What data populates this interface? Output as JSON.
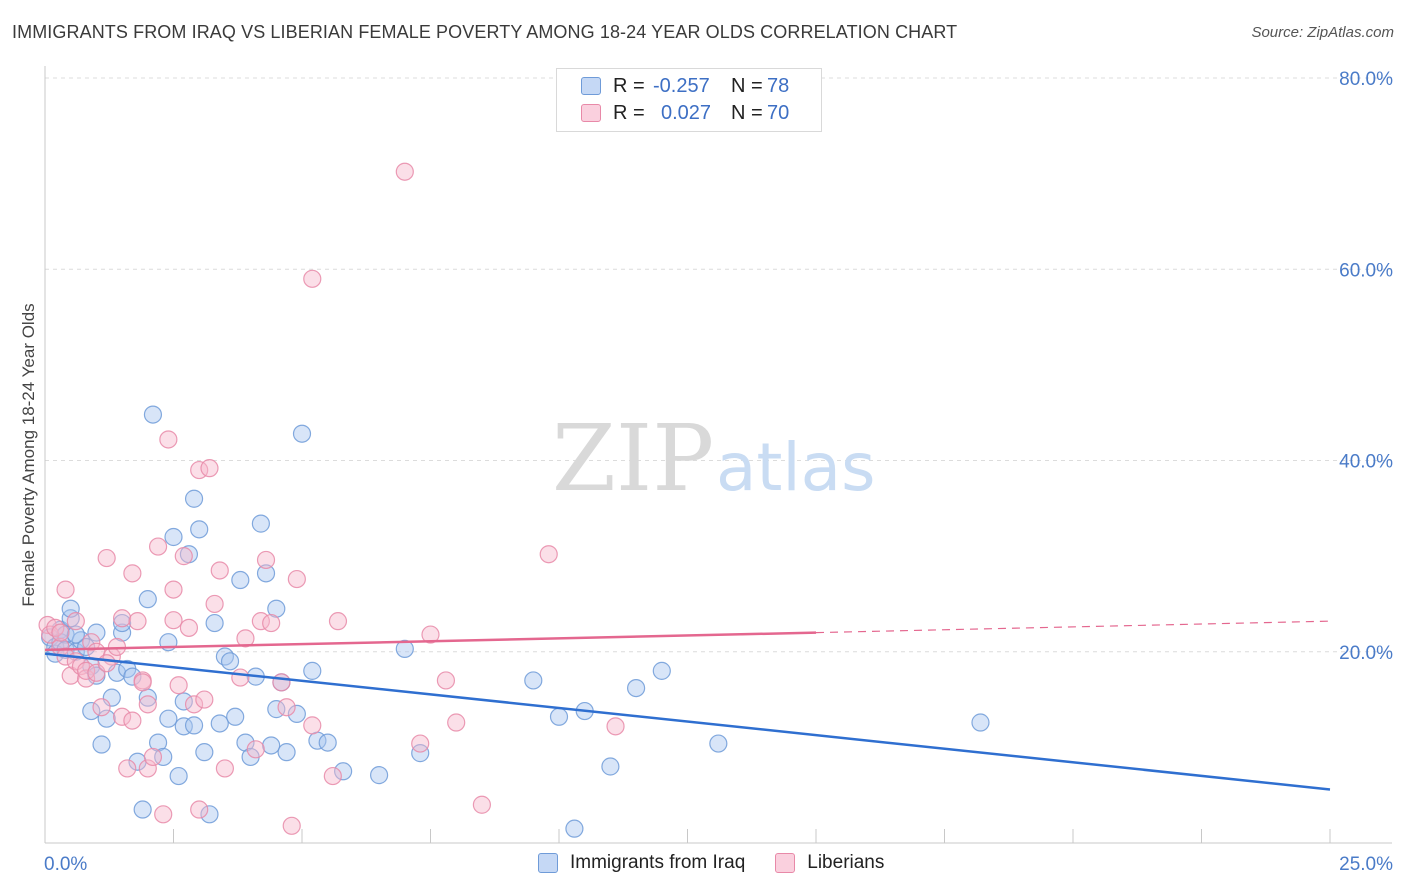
{
  "title": "IMMIGRANTS FROM IRAQ VS LIBERIAN FEMALE POVERTY AMONG 18-24 YEAR OLDS CORRELATION CHART",
  "source": "Source: ZipAtlas.com",
  "watermark": {
    "zip": "ZIP",
    "atlas": "atlas"
  },
  "legend": {
    "rows": [
      {
        "r_label": "R =",
        "r_value": "-0.257",
        "n_label": "N =",
        "n_value": "78",
        "color": "#a9c6ef",
        "border": "#6f9bd8"
      },
      {
        "r_label": "R =",
        "r_value": "0.027",
        "n_label": "N =",
        "n_value": "70",
        "color": "#f6b9cd",
        "border": "#e889a8"
      }
    ]
  },
  "bottom_legend": [
    {
      "label": "Immigrants from Iraq",
      "color": "#c5d8f5",
      "border": "#6f9bd8"
    },
    {
      "label": "Liberians",
      "color": "#fad0de",
      "border": "#e889a8"
    }
  ],
  "chart_data": {
    "type": "scatter",
    "ylabel": "Female Poverty Among 18-24 Year Olds",
    "xlabel": "",
    "xlim": [
      0,
      25
    ],
    "ylim": [
      0,
      80
    ],
    "x_tick_labels": [
      {
        "value": 0,
        "label": "0.0%"
      },
      {
        "value": 25,
        "label": "25.0%"
      }
    ],
    "y_tick_labels": [
      {
        "value": 20,
        "label": "20.0%"
      },
      {
        "value": 40,
        "label": "40.0%"
      },
      {
        "value": 60,
        "label": "60.0%"
      },
      {
        "value": 80,
        "label": "80.0%"
      }
    ],
    "grid": true,
    "series": [
      {
        "name": "Immigrants from Iraq",
        "color": "#6f9bd8",
        "fill": "#a9c6ef",
        "line_color": "#2f6fd0",
        "trend": {
          "x": [
            0,
            25
          ],
          "y": [
            19.8,
            5.6
          ]
        },
        "points": [
          [
            0.1,
            21.5
          ],
          [
            0.2,
            20.5
          ],
          [
            0.2,
            19.8
          ],
          [
            0.3,
            22.3
          ],
          [
            0.3,
            21.0
          ],
          [
            0.4,
            21.8
          ],
          [
            0.4,
            20.2
          ],
          [
            0.5,
            23.5
          ],
          [
            0.5,
            24.5
          ],
          [
            0.6,
            20.0
          ],
          [
            0.7,
            21.2
          ],
          [
            0.8,
            20.5
          ],
          [
            0.9,
            18.5
          ],
          [
            0.9,
            13.8
          ],
          [
            1.0,
            17.5
          ],
          [
            1.0,
            22.0
          ],
          [
            1.1,
            10.3
          ],
          [
            1.2,
            13.0
          ],
          [
            1.3,
            15.2
          ],
          [
            1.4,
            17.8
          ],
          [
            1.5,
            22.0
          ],
          [
            1.5,
            23.0
          ],
          [
            1.6,
            18.2
          ],
          [
            1.7,
            17.4
          ],
          [
            1.8,
            8.5
          ],
          [
            1.9,
            3.5
          ],
          [
            2.0,
            15.2
          ],
          [
            2.0,
            25.5
          ],
          [
            2.1,
            44.8
          ],
          [
            2.2,
            10.5
          ],
          [
            2.3,
            9.0
          ],
          [
            2.4,
            13.0
          ],
          [
            2.4,
            21.0
          ],
          [
            2.5,
            32.0
          ],
          [
            2.6,
            7.0
          ],
          [
            2.7,
            14.8
          ],
          [
            2.7,
            12.2
          ],
          [
            2.8,
            30.2
          ],
          [
            2.9,
            12.3
          ],
          [
            2.9,
            36.0
          ],
          [
            3.0,
            32.8
          ],
          [
            3.1,
            9.5
          ],
          [
            3.2,
            3.0
          ],
          [
            3.3,
            23.0
          ],
          [
            3.4,
            12.5
          ],
          [
            3.5,
            19.5
          ],
          [
            3.6,
            19.0
          ],
          [
            3.7,
            13.2
          ],
          [
            3.8,
            27.5
          ],
          [
            3.9,
            10.5
          ],
          [
            4.0,
            9.0
          ],
          [
            4.1,
            17.4
          ],
          [
            4.2,
            33.4
          ],
          [
            4.3,
            28.2
          ],
          [
            4.4,
            10.2
          ],
          [
            4.5,
            24.5
          ],
          [
            4.5,
            14.0
          ],
          [
            4.6,
            16.8
          ],
          [
            4.7,
            9.5
          ],
          [
            4.9,
            13.5
          ],
          [
            5.0,
            42.8
          ],
          [
            5.2,
            18.0
          ],
          [
            5.3,
            10.7
          ],
          [
            5.5,
            10.5
          ],
          [
            5.8,
            7.5
          ],
          [
            6.5,
            7.1
          ],
          [
            7.0,
            20.3
          ],
          [
            7.3,
            9.4
          ],
          [
            9.5,
            17.0
          ],
          [
            10.0,
            13.2
          ],
          [
            10.3,
            1.5
          ],
          [
            10.5,
            13.8
          ],
          [
            11.0,
            8.0
          ],
          [
            11.5,
            16.2
          ],
          [
            12.0,
            18.0
          ],
          [
            13.1,
            10.4
          ],
          [
            18.2,
            12.6
          ],
          [
            0.6,
            21.8
          ]
        ]
      },
      {
        "name": "Liberians",
        "color": "#e889a8",
        "fill": "#f6b9cd",
        "line_color": "#e4678f",
        "trend": {
          "x": [
            0,
            15
          ],
          "y": [
            20.2,
            22.0
          ]
        },
        "trend_dashed": {
          "x": [
            15,
            25
          ],
          "y": [
            22.0,
            23.2
          ]
        },
        "points": [
          [
            0.05,
            22.8
          ],
          [
            0.1,
            21.8
          ],
          [
            0.2,
            22.5
          ],
          [
            0.3,
            20.5
          ],
          [
            0.4,
            26.5
          ],
          [
            0.4,
            19.5
          ],
          [
            0.5,
            17.5
          ],
          [
            0.6,
            19.0
          ],
          [
            0.6,
            23.2
          ],
          [
            0.7,
            18.5
          ],
          [
            0.8,
            17.2
          ],
          [
            0.8,
            18.0
          ],
          [
            0.9,
            21.0
          ],
          [
            1.0,
            17.8
          ],
          [
            1.0,
            20.0
          ],
          [
            1.1,
            14.2
          ],
          [
            1.2,
            29.8
          ],
          [
            1.3,
            19.5
          ],
          [
            1.4,
            20.5
          ],
          [
            1.5,
            23.5
          ],
          [
            1.5,
            13.2
          ],
          [
            1.6,
            7.8
          ],
          [
            1.7,
            28.2
          ],
          [
            1.7,
            12.8
          ],
          [
            1.8,
            23.2
          ],
          [
            1.9,
            17.0
          ],
          [
            2.0,
            14.5
          ],
          [
            2.0,
            7.8
          ],
          [
            2.1,
            9.0
          ],
          [
            2.2,
            31.0
          ],
          [
            2.3,
            3.0
          ],
          [
            2.4,
            42.2
          ],
          [
            2.5,
            26.5
          ],
          [
            2.5,
            23.3
          ],
          [
            2.6,
            16.5
          ],
          [
            2.7,
            30.0
          ],
          [
            2.8,
            22.5
          ],
          [
            2.9,
            14.5
          ],
          [
            3.0,
            39.0
          ],
          [
            3.0,
            3.5
          ],
          [
            3.1,
            15.0
          ],
          [
            3.2,
            39.2
          ],
          [
            3.3,
            25.0
          ],
          [
            3.4,
            28.5
          ],
          [
            3.5,
            7.8
          ],
          [
            3.8,
            17.3
          ],
          [
            3.9,
            21.4
          ],
          [
            4.1,
            9.8
          ],
          [
            4.2,
            23.2
          ],
          [
            4.3,
            29.6
          ],
          [
            4.4,
            23.0
          ],
          [
            4.6,
            16.8
          ],
          [
            4.7,
            14.2
          ],
          [
            4.8,
            1.8
          ],
          [
            4.9,
            27.6
          ],
          [
            5.2,
            12.3
          ],
          [
            5.2,
            59.0
          ],
          [
            5.6,
            7.0
          ],
          [
            5.7,
            23.2
          ],
          [
            7.0,
            70.2
          ],
          [
            7.3,
            10.4
          ],
          [
            7.5,
            21.8
          ],
          [
            7.8,
            17.0
          ],
          [
            8.0,
            12.6
          ],
          [
            8.5,
            4.0
          ],
          [
            9.8,
            30.2
          ],
          [
            11.1,
            12.2
          ],
          [
            1.2,
            18.8
          ],
          [
            0.3,
            22.0
          ],
          [
            1.9,
            16.8
          ]
        ]
      }
    ]
  }
}
